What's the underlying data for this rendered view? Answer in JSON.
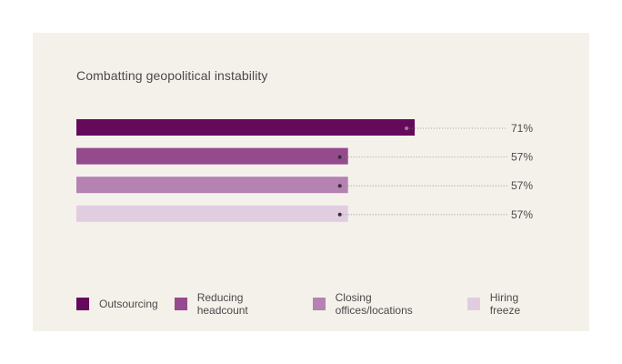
{
  "card": {
    "background": "#f4f1eb"
  },
  "title": "Combatting geopolitical instability",
  "chart_data": {
    "type": "bar",
    "orientation": "horizontal",
    "title": "Combatting geopolitical instability",
    "series": [
      {
        "name": "Outsourcing",
        "value": 71,
        "label": "71%",
        "color": "#650a5b"
      },
      {
        "name": "Reducing headcount",
        "value": 57,
        "label": "57%",
        "color": "#944a8c"
      },
      {
        "name": "Closing offices/locations",
        "value": 57,
        "label": "57%",
        "color": "#b582b2"
      },
      {
        "name": "Hiring freeze",
        "value": 57,
        "label": "57%",
        "color": "#e1cde0"
      }
    ],
    "xlim": [
      0,
      100
    ],
    "grid": false,
    "legend": "bottom",
    "value_labels": "right, with dotted leader lines"
  }
}
